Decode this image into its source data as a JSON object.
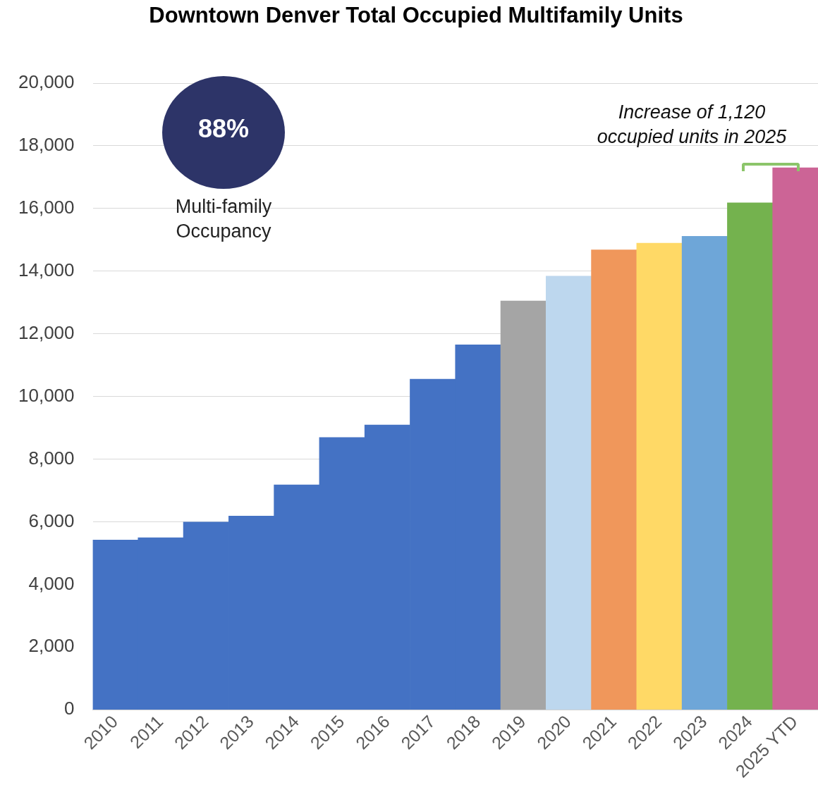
{
  "chart_data": {
    "type": "bar",
    "title": "Downtown Denver Total Occupied Multifamily Units",
    "categories": [
      "2010",
      "2011",
      "2012",
      "2013",
      "2014",
      "2015",
      "2016",
      "2017",
      "2018",
      "2019",
      "2020",
      "2021",
      "2022",
      "2023",
      "2024",
      "2025 YTD"
    ],
    "values": [
      5420,
      5490,
      5990,
      6180,
      7180,
      8690,
      9090,
      10550,
      11650,
      13050,
      13840,
      14680,
      14890,
      15110,
      16180,
      17300
    ],
    "colors": [
      "#4472c4",
      "#4472c4",
      "#4472c4",
      "#4472c4",
      "#4472c4",
      "#4472c4",
      "#4472c4",
      "#4472c4",
      "#4472c4",
      "#a5a5a5",
      "#bdd7ee",
      "#f0975b",
      "#ffd966",
      "#6ea6d8",
      "#74b24e",
      "#cc6496"
    ],
    "ylim": [
      0,
      20000
    ],
    "yticks": [
      0,
      {
        "value": 2000,
        "label": "2,000"
      },
      {
        "value": 4000,
        "label": "4,000"
      },
      {
        "value": 6000,
        "label": "6,000"
      },
      {
        "value": 8000,
        "label": "8,000"
      },
      {
        "value": 10000,
        "label": "10,000"
      },
      {
        "value": 12000,
        "label": "12,000"
      },
      {
        "value": 14000,
        "label": "14,000"
      },
      {
        "value": 16000,
        "label": "16,000"
      },
      {
        "value": 18000,
        "label": "18,000"
      },
      {
        "value": 20000,
        "label": "20,000"
      }
    ],
    "grid": "y",
    "legend": false,
    "annotations": [
      "88%",
      "Multi-family Occupancy",
      "Increase of 1,120 occupied units in 2025"
    ]
  }
}
